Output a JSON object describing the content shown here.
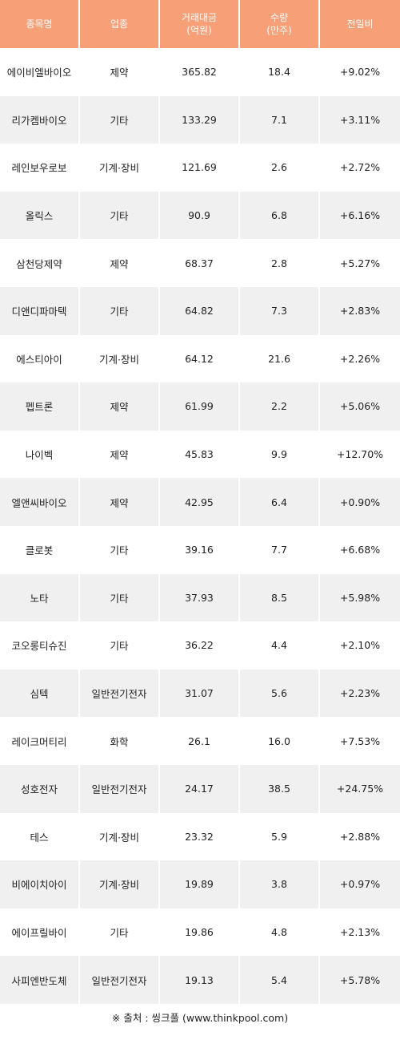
{
  "header": {
    "name": "종목명",
    "sector": "업종",
    "amount_line1": "거래대금",
    "amount_line2": "(억원)",
    "volume_line1": "수량",
    "volume_line2": "(만주)",
    "change": "전일비"
  },
  "colors": {
    "header_bg": "#f79f77",
    "row_alt_bg": "#f0f0f0",
    "change_text": "#e3262b"
  },
  "rows": [
    {
      "name": "에이비엘바이오",
      "sector": "제약",
      "amount": "365.82",
      "volume": "18.4",
      "change": "+9.02%"
    },
    {
      "name": "리가켐바이오",
      "sector": "기타",
      "amount": "133.29",
      "volume": "7.1",
      "change": "+3.11%"
    },
    {
      "name": "레인보우로보",
      "sector": "기계·장비",
      "amount": "121.69",
      "volume": "2.6",
      "change": "+2.72%"
    },
    {
      "name": "올릭스",
      "sector": "기타",
      "amount": "90.9",
      "volume": "6.8",
      "change": "+6.16%"
    },
    {
      "name": "삼천당제약",
      "sector": "제약",
      "amount": "68.37",
      "volume": "2.8",
      "change": "+5.27%"
    },
    {
      "name": "디앤디파마텍",
      "sector": "기타",
      "amount": "64.82",
      "volume": "7.3",
      "change": "+2.83%"
    },
    {
      "name": "에스티아이",
      "sector": "기계·장비",
      "amount": "64.12",
      "volume": "21.6",
      "change": "+2.26%"
    },
    {
      "name": "펩트론",
      "sector": "제약",
      "amount": "61.99",
      "volume": "2.2",
      "change": "+5.06%"
    },
    {
      "name": "나이벡",
      "sector": "제약",
      "amount": "45.83",
      "volume": "9.9",
      "change": "+12.70%"
    },
    {
      "name": "엘앤씨바이오",
      "sector": "제약",
      "amount": "42.95",
      "volume": "6.4",
      "change": "+0.90%"
    },
    {
      "name": "클로봇",
      "sector": "기타",
      "amount": "39.16",
      "volume": "7.7",
      "change": "+6.68%"
    },
    {
      "name": "노타",
      "sector": "기타",
      "amount": "37.93",
      "volume": "8.5",
      "change": "+5.98%"
    },
    {
      "name": "코오롱티슈진",
      "sector": "기타",
      "amount": "36.22",
      "volume": "4.4",
      "change": "+2.10%"
    },
    {
      "name": "심텍",
      "sector": "일반전기전자",
      "amount": "31.07",
      "volume": "5.6",
      "change": "+2.23%"
    },
    {
      "name": "레이크머티리",
      "sector": "화학",
      "amount": "26.1",
      "volume": "16.0",
      "change": "+7.53%"
    },
    {
      "name": "성호전자",
      "sector": "일반전기전자",
      "amount": "24.17",
      "volume": "38.5",
      "change": "+24.75%"
    },
    {
      "name": "테스",
      "sector": "기계·장비",
      "amount": "23.32",
      "volume": "5.9",
      "change": "+2.88%"
    },
    {
      "name": "비에이치아이",
      "sector": "기계·장비",
      "amount": "19.89",
      "volume": "3.8",
      "change": "+0.97%"
    },
    {
      "name": "에이프릴바이",
      "sector": "기타",
      "amount": "19.86",
      "volume": "4.8",
      "change": "+2.13%"
    },
    {
      "name": "사피엔반도체",
      "sector": "일반전기전자",
      "amount": "19.13",
      "volume": "5.4",
      "change": "+5.78%"
    }
  ],
  "footer": {
    "source": "※ 출처 : 씽크풀 (www.thinkpool.com)"
  }
}
